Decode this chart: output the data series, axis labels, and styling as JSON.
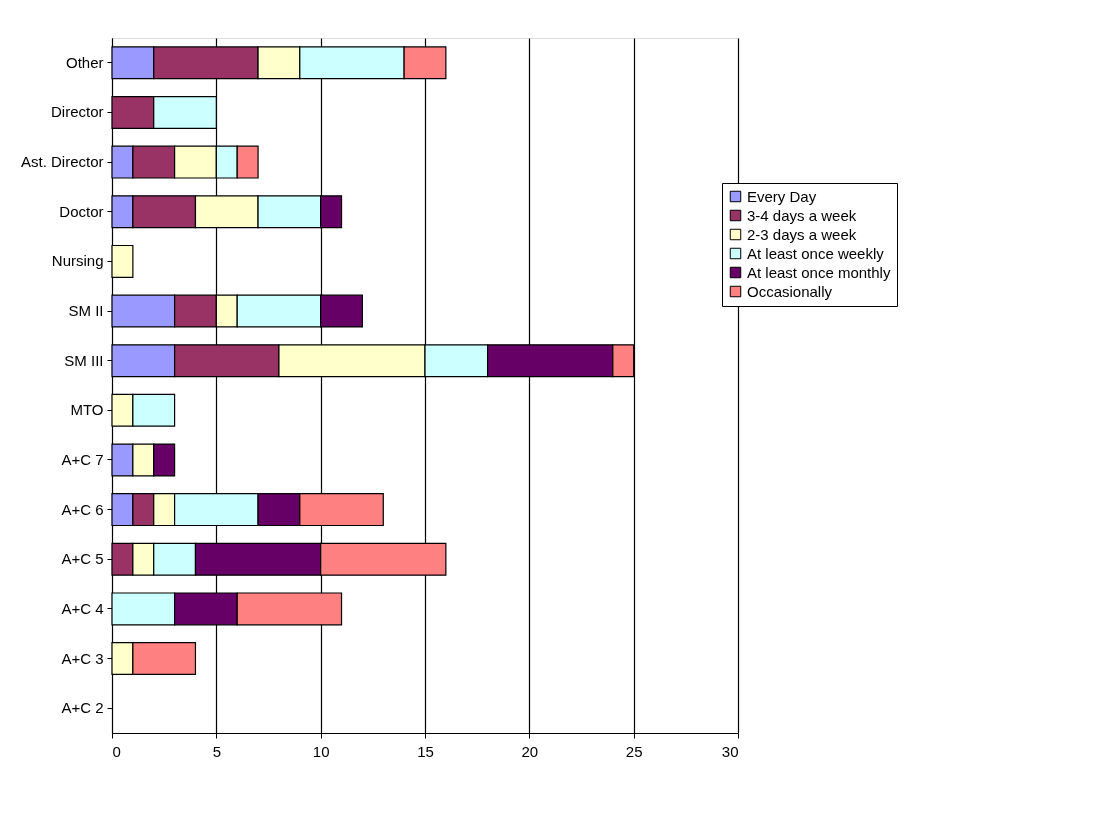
{
  "chart_data": {
    "type": "bar",
    "orientation": "horizontal",
    "stacked": true,
    "categories": [
      "Other",
      "Director",
      "Ast. Director",
      "Doctor",
      "Nursing",
      "SM II",
      "SM III",
      "MTO",
      "A+C 7",
      "A+C 6",
      "A+C 5",
      "A+C 4",
      "A+C 3",
      "A+C 2"
    ],
    "series": [
      {
        "name": "Every Day",
        "color": "#9999ff",
        "values": [
          2,
          null,
          1,
          1,
          null,
          3,
          3,
          null,
          1,
          1,
          null,
          null,
          null,
          null
        ]
      },
      {
        "name": "3-4 days a week",
        "color": "#993366",
        "values": [
          5,
          2,
          2,
          3,
          null,
          2,
          5,
          null,
          null,
          1,
          1,
          null,
          null,
          null
        ]
      },
      {
        "name": "2-3 days a week",
        "color": "#ffffcc",
        "values": [
          2,
          null,
          2,
          3,
          1,
          1,
          7,
          1,
          1,
          1,
          1,
          null,
          1,
          null
        ]
      },
      {
        "name": "At least once weekly",
        "color": "#ccffff",
        "values": [
          5,
          3,
          1,
          3,
          null,
          4,
          3,
          2,
          null,
          4,
          2,
          3,
          null,
          null
        ]
      },
      {
        "name": "At least once monthly",
        "color": "#660066",
        "values": [
          null,
          null,
          null,
          1,
          null,
          2,
          6,
          null,
          1,
          2,
          6,
          3,
          null,
          null
        ]
      },
      {
        "name": "Occasionally",
        "color": "#ff8080",
        "values": [
          2,
          null,
          1,
          null,
          null,
          null,
          1,
          null,
          null,
          4,
          6,
          5,
          3,
          null
        ]
      }
    ],
    "xlim": [
      0,
      30
    ],
    "xticks": [
      0,
      5,
      10,
      15,
      20,
      25,
      30
    ],
    "grid": "x",
    "legend": "right"
  }
}
